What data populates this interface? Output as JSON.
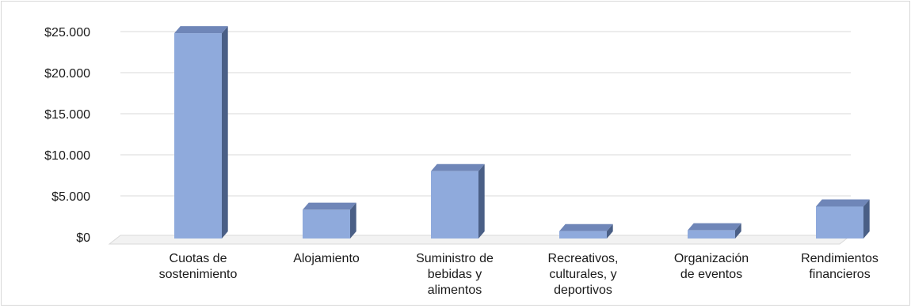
{
  "chart_data": {
    "type": "bar",
    "style": "3d-column",
    "title": "",
    "xlabel": "",
    "ylabel": "",
    "ylim": [
      0,
      25000
    ],
    "yticks": [
      {
        "value": 0,
        "label": "$0"
      },
      {
        "value": 5000,
        "label": "$5.000"
      },
      {
        "value": 10000,
        "label": "$10.000"
      },
      {
        "value": 15000,
        "label": "$15.000"
      },
      {
        "value": 20000,
        "label": "$20.000"
      },
      {
        "value": 25000,
        "label": "$25.000"
      }
    ],
    "categories": [
      [
        "Cuotas de",
        "sostenimiento"
      ],
      [
        "Alojamiento"
      ],
      [
        "Suministro de",
        "bebidas y",
        "alimentos"
      ],
      [
        "Recreativos,",
        "culturales, y",
        "deportivos"
      ],
      [
        "Organización",
        "de eventos"
      ],
      [
        "Rendimientos",
        "financieros"
      ]
    ],
    "values": [
      24800,
      3300,
      8000,
      700,
      800,
      3700
    ],
    "grid": true,
    "legend": "none",
    "colors": {
      "bar_front": "#8faadc",
      "bar_top": "#6f86b8",
      "bar_side": "#4a5f86",
      "grid": "#d9d9d9",
      "floor": "#d9d9d9"
    }
  }
}
